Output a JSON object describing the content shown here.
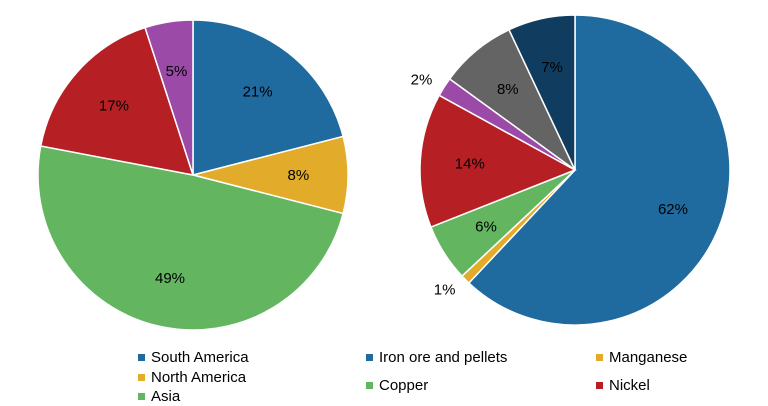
{
  "chart_data": [
    {
      "type": "pie",
      "slices": [
        {
          "name": "South America",
          "value": 21,
          "label": "21%",
          "color": "#1f6a9e"
        },
        {
          "name": "North America",
          "value": 8,
          "label": "8%",
          "color": "#e3ab2a"
        },
        {
          "name": "Asia",
          "value": 49,
          "label": "49%",
          "color": "#63b560"
        },
        {
          "name": "",
          "value": 17,
          "label": "17%",
          "color": "#b62025"
        },
        {
          "name": "",
          "value": 5,
          "label": "5%",
          "color": "#9b4aa8"
        }
      ],
      "legend": [
        "South America",
        "North America",
        "Asia"
      ],
      "legend_position": "bottom"
    },
    {
      "type": "pie",
      "slices": [
        {
          "name": "Iron ore and pellets",
          "value": 62,
          "label": "62%",
          "color": "#1f6a9e"
        },
        {
          "name": "Manganese",
          "value": 1,
          "label": "1%",
          "color": "#e3ab2a"
        },
        {
          "name": "Copper",
          "value": 6,
          "label": "6%",
          "color": "#63b560"
        },
        {
          "name": "Nickel",
          "value": 14,
          "label": "14%",
          "color": "#b62025"
        },
        {
          "name": "",
          "value": 2,
          "label": "2%",
          "color": "#9b4aa8"
        },
        {
          "name": "",
          "value": 8,
          "label": "8%",
          "color": "#646464"
        },
        {
          "name": "",
          "value": 7,
          "label": "7%",
          "color": "#103c60"
        }
      ],
      "legend": [
        "Iron ore and pellets",
        "Manganese",
        "Copper",
        "Nickel"
      ],
      "legend_position": "bottom"
    }
  ]
}
